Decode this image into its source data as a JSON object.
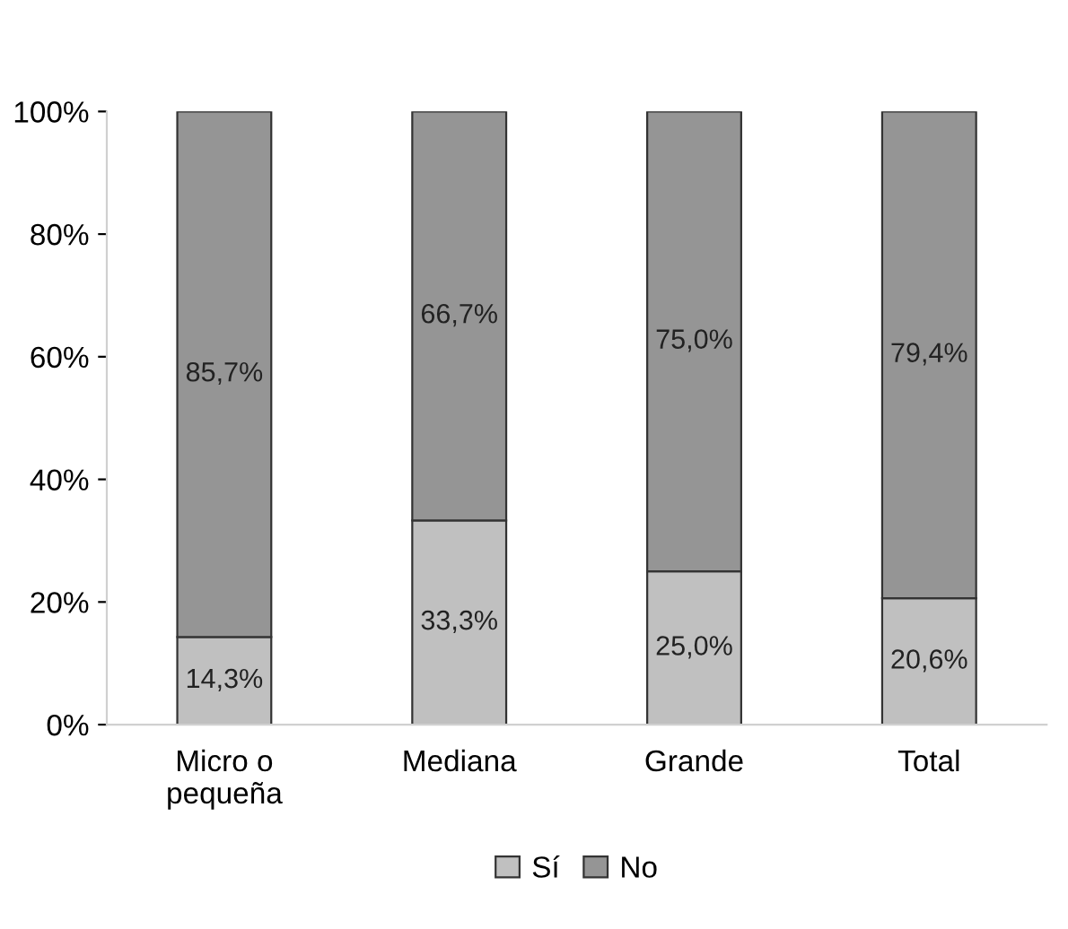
{
  "chart_data": {
    "type": "bar",
    "stacked": true,
    "categories": [
      "Micro o\npequeña",
      "Mediana",
      "Grande",
      "Total"
    ],
    "series": [
      {
        "name": "Sí",
        "color": "#c0c0c0",
        "values": [
          14.3,
          33.3,
          25.0,
          20.6
        ],
        "value_labels": [
          "14,3%",
          "33,3%",
          "25,0%",
          "20,6%"
        ]
      },
      {
        "name": "No",
        "color": "#959595",
        "values": [
          85.7,
          66.7,
          75.0,
          79.4
        ],
        "value_labels": [
          "85,7%",
          "66,7%",
          "75,0%",
          "79,4%"
        ]
      }
    ],
    "ylim": [
      0,
      100
    ],
    "yticks": [
      {
        "value": 0,
        "label": "0%"
      },
      {
        "value": 20,
        "label": "20%"
      },
      {
        "value": 40,
        "label": "40%"
      },
      {
        "value": 60,
        "label": "60%"
      },
      {
        "value": 80,
        "label": "80%"
      },
      {
        "value": 100,
        "label": "100%"
      }
    ],
    "grid": false,
    "legend": "bottom"
  }
}
